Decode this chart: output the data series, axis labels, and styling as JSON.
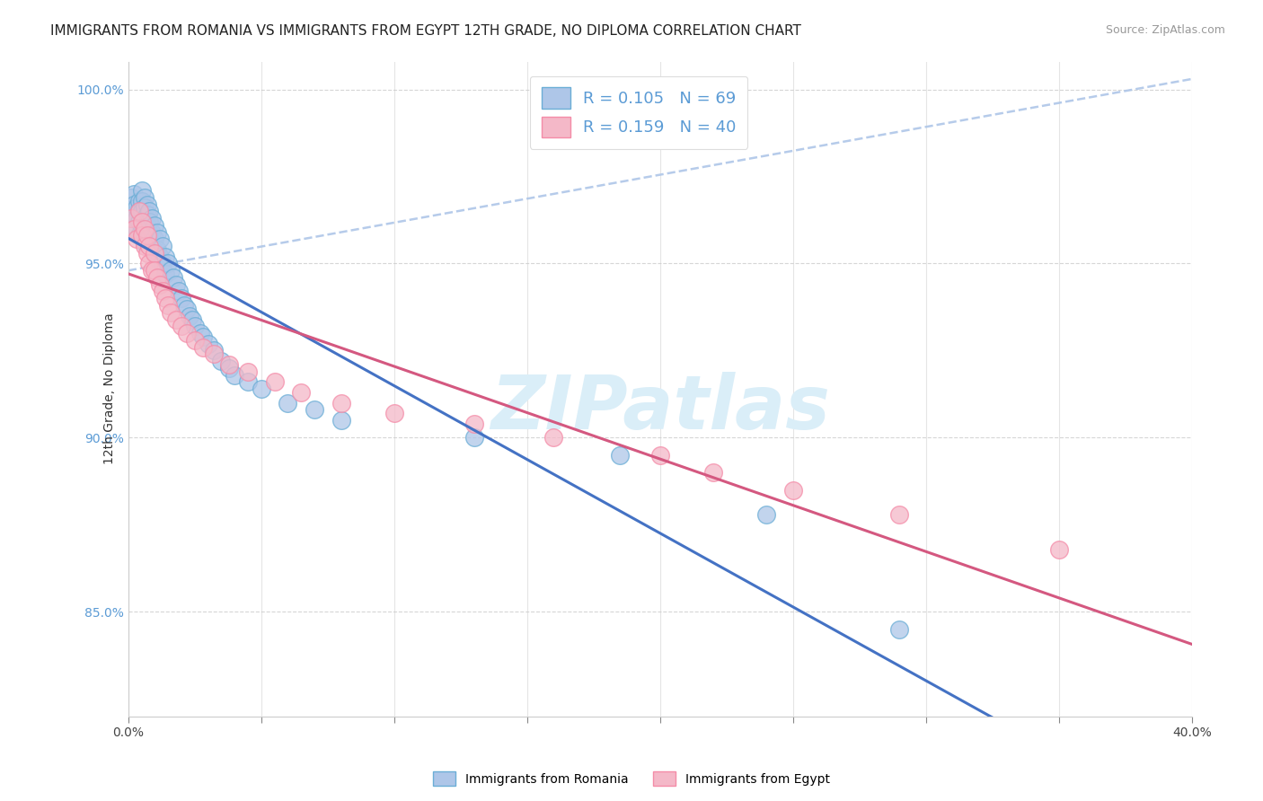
{
  "title": "IMMIGRANTS FROM ROMANIA VS IMMIGRANTS FROM EGYPT 12TH GRADE, NO DIPLOMA CORRELATION CHART",
  "source": "Source: ZipAtlas.com",
  "ylabel": "12th Grade, No Diploma",
  "x_min": 0.0,
  "x_max": 0.4,
  "y_min": 0.82,
  "y_max": 1.008,
  "x_ticks": [
    0.0,
    0.05,
    0.1,
    0.15,
    0.2,
    0.25,
    0.3,
    0.35,
    0.4
  ],
  "y_ticks": [
    0.85,
    0.9,
    0.95,
    1.0
  ],
  "y_tick_labels": [
    "85.0%",
    "90.0%",
    "95.0%",
    "100.0%"
  ],
  "romania_R": 0.105,
  "romania_N": 69,
  "egypt_R": 0.159,
  "egypt_N": 40,
  "romania_fill_color": "#aec6e8",
  "egypt_fill_color": "#f4b8c8",
  "romania_edge_color": "#6baed6",
  "egypt_edge_color": "#f48ca8",
  "romania_line_color": "#4472c4",
  "egypt_line_color": "#d45880",
  "dashed_line_color": "#aec6e8",
  "grid_color": "#cccccc",
  "title_fontsize": 11,
  "source_fontsize": 9,
  "axis_label_fontsize": 10,
  "tick_fontsize": 10,
  "legend_fontsize": 13,
  "watermark_color": "#daeef8",
  "watermark_fontsize": 60,
  "romania_scatter_x": [
    0.001,
    0.001,
    0.002,
    0.002,
    0.002,
    0.003,
    0.003,
    0.003,
    0.004,
    0.004,
    0.004,
    0.004,
    0.005,
    0.005,
    0.005,
    0.005,
    0.006,
    0.006,
    0.006,
    0.006,
    0.006,
    0.007,
    0.007,
    0.007,
    0.007,
    0.008,
    0.008,
    0.008,
    0.009,
    0.009,
    0.009,
    0.01,
    0.01,
    0.01,
    0.011,
    0.011,
    0.012,
    0.012,
    0.013,
    0.013,
    0.014,
    0.014,
    0.015,
    0.016,
    0.017,
    0.018,
    0.019,
    0.02,
    0.021,
    0.022,
    0.023,
    0.024,
    0.025,
    0.027,
    0.028,
    0.03,
    0.032,
    0.035,
    0.038,
    0.04,
    0.045,
    0.05,
    0.06,
    0.07,
    0.08,
    0.13,
    0.185,
    0.24,
    0.29
  ],
  "romania_scatter_y": [
    0.969,
    0.963,
    0.97,
    0.967,
    0.964,
    0.966,
    0.963,
    0.96,
    0.968,
    0.965,
    0.962,
    0.958,
    0.971,
    0.968,
    0.965,
    0.961,
    0.969,
    0.966,
    0.963,
    0.959,
    0.956,
    0.967,
    0.964,
    0.961,
    0.957,
    0.965,
    0.962,
    0.958,
    0.963,
    0.959,
    0.955,
    0.961,
    0.957,
    0.953,
    0.959,
    0.954,
    0.957,
    0.952,
    0.955,
    0.95,
    0.952,
    0.947,
    0.95,
    0.948,
    0.946,
    0.944,
    0.942,
    0.94,
    0.938,
    0.937,
    0.935,
    0.934,
    0.932,
    0.93,
    0.929,
    0.927,
    0.925,
    0.922,
    0.92,
    0.918,
    0.916,
    0.914,
    0.91,
    0.908,
    0.905,
    0.9,
    0.895,
    0.878,
    0.845
  ],
  "egypt_scatter_x": [
    0.001,
    0.002,
    0.003,
    0.004,
    0.005,
    0.005,
    0.006,
    0.006,
    0.007,
    0.007,
    0.008,
    0.008,
    0.009,
    0.01,
    0.01,
    0.011,
    0.012,
    0.013,
    0.014,
    0.015,
    0.016,
    0.018,
    0.02,
    0.022,
    0.025,
    0.028,
    0.032,
    0.038,
    0.045,
    0.055,
    0.065,
    0.08,
    0.1,
    0.13,
    0.16,
    0.2,
    0.22,
    0.25,
    0.29,
    0.35
  ],
  "egypt_scatter_y": [
    0.963,
    0.96,
    0.957,
    0.965,
    0.962,
    0.958,
    0.96,
    0.955,
    0.958,
    0.953,
    0.955,
    0.95,
    0.948,
    0.953,
    0.948,
    0.946,
    0.944,
    0.942,
    0.94,
    0.938,
    0.936,
    0.934,
    0.932,
    0.93,
    0.928,
    0.926,
    0.924,
    0.921,
    0.919,
    0.916,
    0.913,
    0.91,
    0.907,
    0.904,
    0.9,
    0.895,
    0.89,
    0.885,
    0.878,
    0.868
  ]
}
